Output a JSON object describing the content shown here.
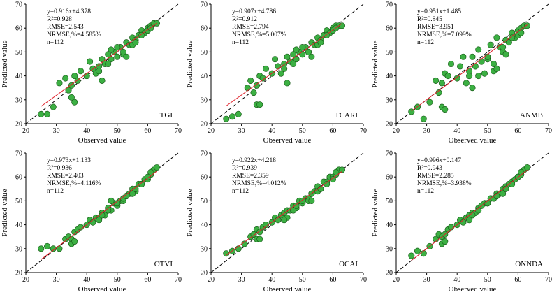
{
  "figure": {
    "xlabel": "Observed value",
    "ylabel": "Predicted value"
  },
  "colors": {
    "point_fill": "#3cb043",
    "point_stroke": "#1a5c1a",
    "fit_line": "#e0202a",
    "one_to_one": "#000000"
  },
  "chart_data": [
    {
      "type": "scatter",
      "panel": "TGI",
      "xlabel": "Observed value",
      "ylabel": "Predicted value",
      "xlim": [
        20,
        70
      ],
      "ylim": [
        20,
        70
      ],
      "xticks": [
        20,
        30,
        40,
        50,
        60,
        70
      ],
      "yticks": [
        20,
        30,
        40,
        50,
        60,
        70
      ],
      "fit": {
        "slope": 0.916,
        "intercept": 4.378
      },
      "stats": [
        "y=0.916x+4.378",
        "R²=0.928",
        "RMSE=2.543",
        "NRMSE,%=4.585%",
        "n=112"
      ],
      "reference_line": "1:1 dashed",
      "n": 112,
      "x": [
        25,
        27,
        29,
        31,
        33,
        34,
        35,
        35,
        36,
        37,
        38,
        40,
        41,
        42,
        43,
        44,
        45,
        46,
        47,
        48,
        49,
        50,
        51,
        52,
        53,
        54,
        55,
        56,
        57,
        58,
        59,
        60,
        61,
        62,
        63,
        45,
        47,
        50,
        52,
        55,
        58,
        60,
        48,
        53,
        36,
        44,
        56,
        61
      ],
      "y": [
        24,
        24,
        27,
        37,
        39,
        34,
        36,
        31,
        40,
        38,
        42,
        40,
        46,
        43,
        41,
        44,
        47,
        45,
        49,
        47,
        50,
        48,
        52,
        49,
        54,
        53,
        56,
        55,
        57,
        59,
        58,
        60,
        61,
        62,
        62,
        38,
        45,
        52,
        50,
        53,
        57,
        59,
        51,
        48,
        29,
        42,
        54,
        60
      ]
    },
    {
      "type": "scatter",
      "panel": "TCARI",
      "xlabel": "Observed value",
      "ylabel": "Predicted value",
      "xlim": [
        20,
        70
      ],
      "ylim": [
        20,
        70
      ],
      "xticks": [
        20,
        30,
        40,
        50,
        60,
        70
      ],
      "yticks": [
        20,
        30,
        40,
        50,
        60,
        70
      ],
      "fit": {
        "slope": 0.907,
        "intercept": 4.786
      },
      "stats": [
        "y=0.907x+4.786",
        "R²=0.912",
        "RMSE=2.794",
        "NRMSE,%=5.007%",
        "n=112"
      ],
      "reference_line": "1:1 dashed",
      "n": 112,
      "x": [
        25,
        27,
        29,
        32,
        33,
        34,
        35,
        35,
        36,
        37,
        38,
        40,
        41,
        42,
        43,
        44,
        45,
        46,
        47,
        48,
        49,
        50,
        51,
        52,
        53,
        54,
        55,
        56,
        57,
        58,
        59,
        60,
        61,
        62,
        63,
        45,
        47,
        50,
        52,
        55,
        58,
        60,
        48,
        53,
        36,
        44,
        56,
        61
      ],
      "y": [
        22,
        23,
        24,
        35,
        38,
        33,
        36,
        28,
        40,
        39,
        43,
        41,
        47,
        44,
        41,
        45,
        48,
        46,
        49,
        47,
        50,
        49,
        52,
        50,
        54,
        53,
        56,
        55,
        57,
        59,
        58,
        60,
        61,
        61,
        61,
        37,
        45,
        52,
        50,
        53,
        57,
        59,
        51,
        48,
        28,
        43,
        54,
        60
      ]
    },
    {
      "type": "scatter",
      "panel": "ANMB",
      "xlabel": "Observed value",
      "ylabel": "Predicted value",
      "xlim": [
        20,
        70
      ],
      "ylim": [
        20,
        70
      ],
      "xticks": [
        20,
        30,
        40,
        50,
        60,
        70
      ],
      "yticks": [
        20,
        30,
        40,
        50,
        60,
        70
      ],
      "fit": {
        "slope": 0.951,
        "intercept": 1.485
      },
      "stats": [
        "y=0.951x+1.485",
        "R²=0.845",
        "RMSE=3.951",
        "NRMSE,%=7.099%",
        "n=112"
      ],
      "reference_line": "1:1 dashed",
      "n": 112,
      "x": [
        25,
        27,
        29,
        31,
        33,
        34,
        35,
        35,
        36,
        37,
        38,
        40,
        41,
        42,
        43,
        44,
        45,
        46,
        47,
        48,
        49,
        50,
        51,
        52,
        53,
        54,
        55,
        56,
        57,
        58,
        59,
        60,
        61,
        62,
        63,
        45,
        47,
        50,
        52,
        55,
        58,
        60,
        48,
        53,
        36,
        44,
        56,
        61
      ],
      "y": [
        25,
        27,
        22,
        29,
        38,
        33,
        37,
        27,
        41,
        40,
        45,
        39,
        44,
        48,
        37,
        42,
        48,
        44,
        51,
        46,
        41,
        47,
        53,
        45,
        56,
        52,
        50,
        55,
        54,
        58,
        56,
        59,
        60,
        61,
        61,
        35,
        40,
        48,
        42,
        52,
        56,
        57,
        46,
        43,
        26,
        40,
        49,
        58
      ]
    },
    {
      "type": "scatter",
      "panel": "OTVI",
      "xlabel": "Observed value",
      "ylabel": "Predicted value",
      "xlim": [
        20,
        70
      ],
      "ylim": [
        20,
        70
      ],
      "xticks": [
        20,
        30,
        40,
        50,
        60,
        70
      ],
      "yticks": [
        20,
        30,
        40,
        50,
        60,
        70
      ],
      "fit": {
        "slope": 0.973,
        "intercept": 1.133
      },
      "stats": [
        "y=0.973x+1.133",
        "R²=0.936",
        "RMSE=2.403",
        "NRMSE,%=4.116%",
        "n=112"
      ],
      "reference_line": "1:1 dashed",
      "n": 112,
      "x": [
        25,
        27,
        29,
        31,
        33,
        34,
        35,
        35,
        36,
        37,
        38,
        40,
        41,
        42,
        43,
        44,
        45,
        46,
        47,
        48,
        49,
        50,
        51,
        52,
        53,
        54,
        55,
        56,
        57,
        58,
        59,
        60,
        61,
        62,
        63,
        45,
        47,
        50,
        52,
        55,
        58,
        60,
        48,
        53,
        36,
        44,
        56,
        61
      ],
      "y": [
        30,
        31,
        30,
        30,
        34,
        35,
        34,
        32,
        37,
        38,
        39,
        40,
        42,
        41,
        43,
        43,
        45,
        44,
        47,
        46,
        49,
        48,
        50,
        50,
        52,
        53,
        55,
        54,
        57,
        57,
        59,
        59,
        61,
        63,
        64,
        44,
        46,
        49,
        51,
        53,
        57,
        60,
        50,
        52,
        33,
        42,
        55,
        62
      ]
    },
    {
      "type": "scatter",
      "panel": "OCAI",
      "xlabel": "Observed value",
      "ylabel": "Predicted value",
      "xlim": [
        20,
        70
      ],
      "ylim": [
        20,
        70
      ],
      "xticks": [
        20,
        30,
        40,
        50,
        60,
        70
      ],
      "yticks": [
        20,
        30,
        40,
        50,
        60,
        70
      ],
      "fit": {
        "slope": 0.922,
        "intercept": 4.218
      },
      "stats": [
        "y=0.922x+4.218",
        "R²=0.939",
        "RMSE=2.359",
        "NRMSE,%=4.012%",
        "n=112"
      ],
      "reference_line": "1:1 dashed",
      "n": 112,
      "x": [
        25,
        27,
        29,
        31,
        33,
        34,
        35,
        35,
        36,
        37,
        38,
        40,
        41,
        42,
        43,
        44,
        45,
        46,
        47,
        48,
        49,
        50,
        51,
        52,
        53,
        54,
        55,
        56,
        57,
        58,
        59,
        60,
        61,
        62,
        63,
        45,
        47,
        50,
        52,
        55,
        58,
        60,
        48,
        53,
        36,
        44,
        56,
        61
      ],
      "y": [
        28,
        29,
        30,
        32,
        35,
        36,
        38,
        34,
        37,
        39,
        40,
        41,
        43,
        42,
        44,
        45,
        46,
        46,
        48,
        47,
        50,
        49,
        51,
        51,
        53,
        54,
        56,
        55,
        58,
        58,
        60,
        60,
        61,
        63,
        63,
        43,
        46,
        50,
        50,
        54,
        57,
        59,
        48,
        50,
        34,
        42,
        55,
        62
      ]
    },
    {
      "type": "scatter",
      "panel": "ONNDA",
      "xlabel": "Observed value",
      "ylabel": "Predicted value",
      "xlim": [
        20,
        70
      ],
      "ylim": [
        20,
        70
      ],
      "xticks": [
        20,
        30,
        40,
        50,
        60,
        70
      ],
      "yticks": [
        20,
        30,
        40,
        50,
        60,
        70
      ],
      "fit": {
        "slope": 0.996,
        "intercept": 0.147
      },
      "stats": [
        "y=0.996x+0.147",
        "R²=0.943",
        "RMSE=2.285",
        "NRMSE,%=3.938%",
        "n=112"
      ],
      "reference_line": "1:1 dashed",
      "n": 112,
      "x": [
        25,
        27,
        29,
        31,
        33,
        34,
        35,
        35,
        36,
        37,
        38,
        40,
        41,
        42,
        43,
        44,
        45,
        46,
        47,
        48,
        49,
        50,
        51,
        52,
        53,
        54,
        55,
        56,
        57,
        58,
        59,
        60,
        61,
        62,
        63,
        45,
        47,
        50,
        52,
        55,
        58,
        60,
        48,
        53,
        36,
        44,
        56,
        61
      ],
      "y": [
        27,
        29,
        28,
        31,
        34,
        36,
        35,
        32,
        36,
        38,
        39,
        40,
        42,
        41,
        43,
        44,
        45,
        45,
        47,
        48,
        49,
        49,
        51,
        51,
        53,
        53,
        55,
        56,
        57,
        58,
        59,
        60,
        61,
        63,
        64,
        44,
        46,
        49,
        51,
        53,
        57,
        60,
        48,
        52,
        33,
        42,
        55,
        62
      ]
    }
  ]
}
